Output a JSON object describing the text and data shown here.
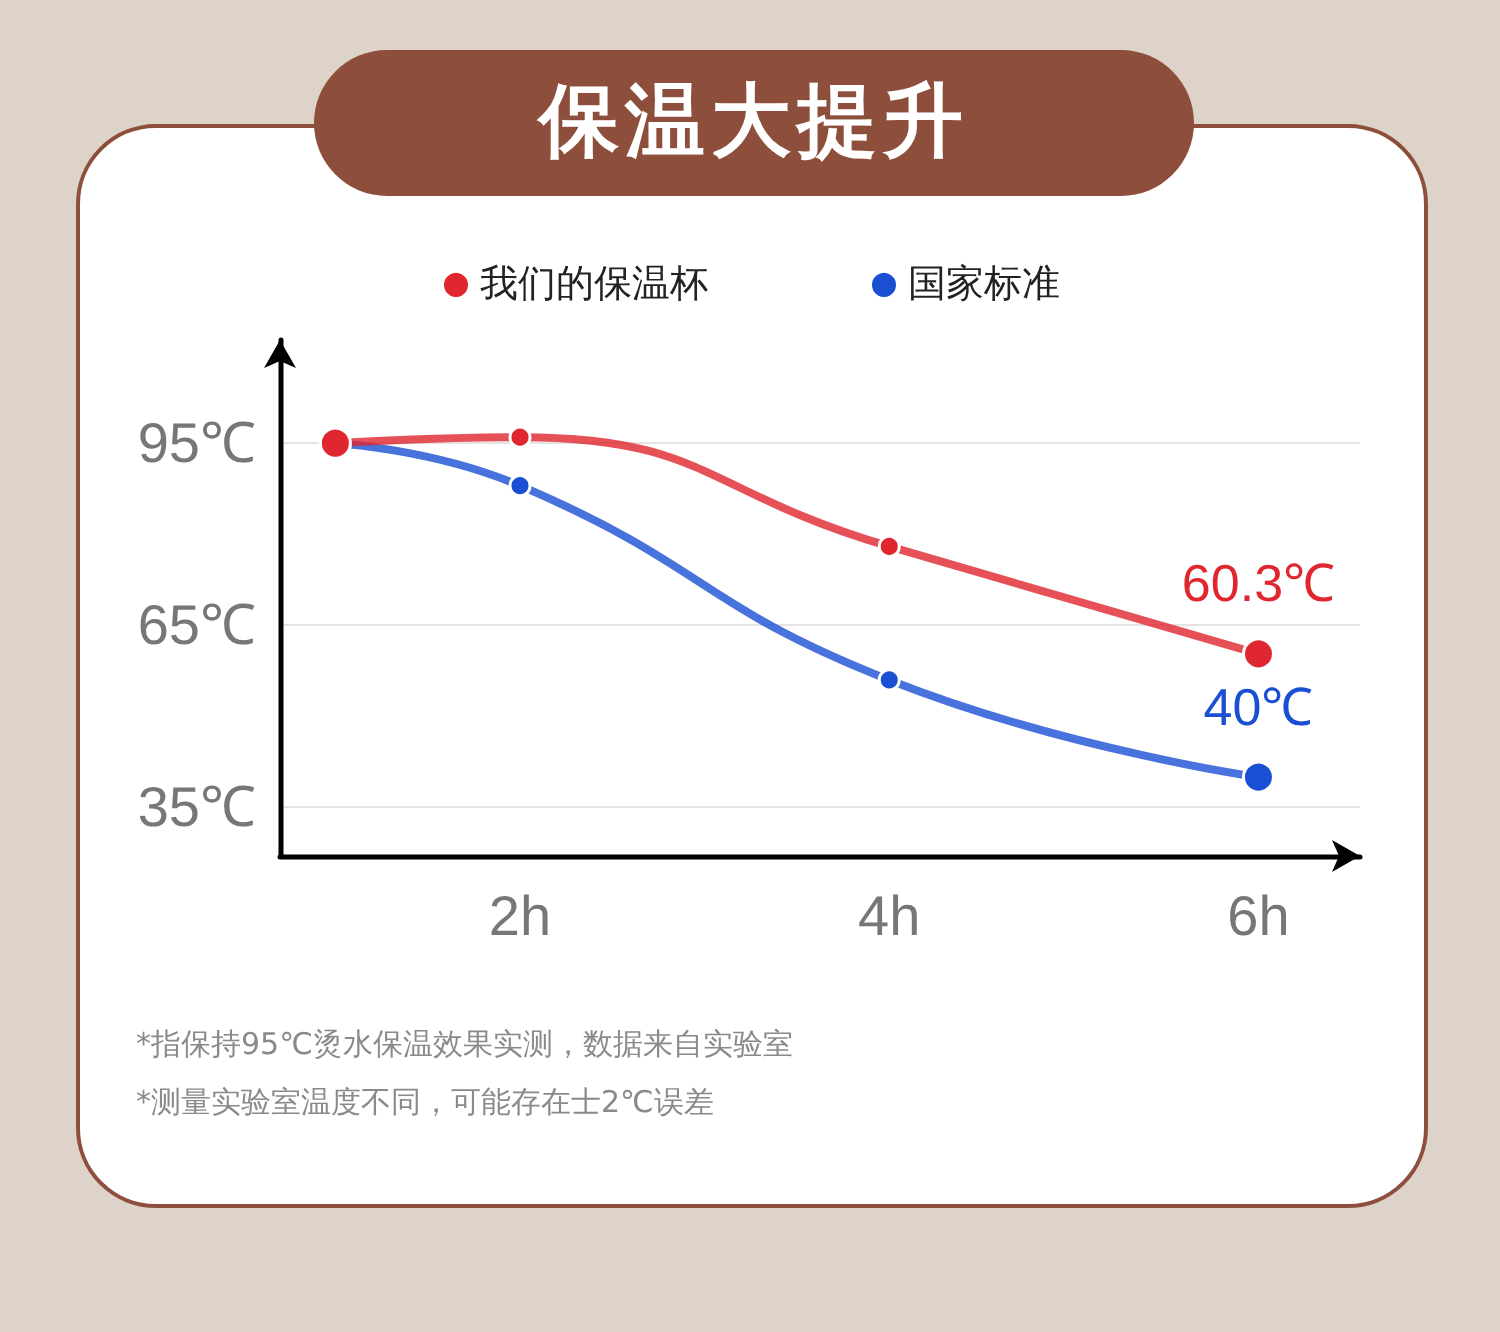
{
  "chart_data": {
    "type": "line",
    "title": "保温大提升",
    "x": [
      1,
      2,
      4,
      6
    ],
    "xlim": [
      0.7,
      6.55
    ],
    "xticks": [
      {
        "value": 2,
        "label": "2h"
      },
      {
        "value": 4,
        "label": "4h"
      },
      {
        "value": 6,
        "label": "6h"
      }
    ],
    "ylim": [
      27,
      112
    ],
    "yticks": [
      {
        "value": 35,
        "label": "35℃"
      },
      {
        "value": 65,
        "label": "65℃"
      },
      {
        "value": 95,
        "label": "95℃"
      }
    ],
    "series": [
      {
        "name": "我们的保温杯",
        "color": "#e0262e",
        "values": [
          95,
          96,
          78,
          60.3
        ],
        "value_labels": [
          null,
          null,
          null,
          "60.3℃"
        ]
      },
      {
        "name": "国家标准",
        "color": "#1a4fd3",
        "values": [
          95,
          88,
          56,
          40
        ],
        "value_labels": [
          null,
          null,
          null,
          "40℃"
        ]
      }
    ],
    "grid": "y",
    "legend": "top",
    "marker": "circle",
    "line_style": "solid",
    "annotations": [
      "*指保持95℃烫水保温效果实测，数据来自实验室",
      "*测量实验室温度不同，可能存在士2℃误差"
    ]
  }
}
